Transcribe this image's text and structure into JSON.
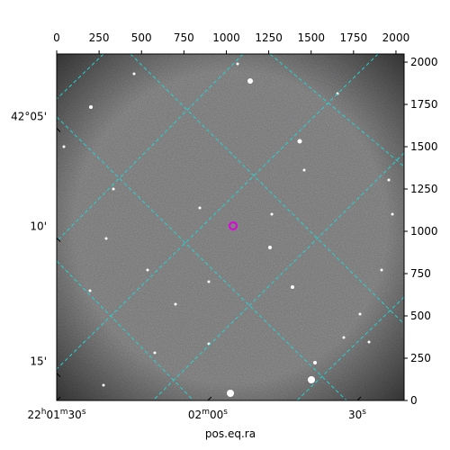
{
  "chart_data": {
    "type": "image",
    "xlabel": "pos.eq.ra",
    "xlim": [
      0,
      2048
    ],
    "ylim": [
      0,
      2048
    ],
    "xticks": [
      0,
      250,
      500,
      750,
      1000,
      1250,
      1500,
      1750,
      2000
    ],
    "yticks": [
      0,
      250,
      500,
      750,
      1000,
      1250,
      1500,
      1750,
      2000
    ],
    "ra_ticks": [
      {
        "value": 0,
        "label": "22h01m30s"
      },
      {
        "value": 891,
        "label": "02m00s"
      },
      {
        "value": 1772,
        "label": "30s"
      }
    ],
    "dec_ticks": [
      {
        "value": 1609,
        "label": "42°05'"
      },
      {
        "value": 960,
        "label": "10'"
      },
      {
        "value": 161,
        "label": "15'"
      }
    ]
  }
}
